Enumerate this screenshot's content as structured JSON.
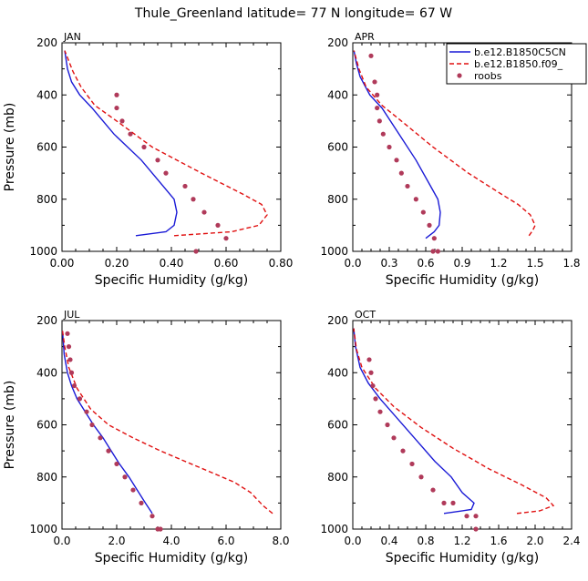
{
  "title": "Thule_Greenland  latitude= 77 N longitude= 67 W",
  "colors": {
    "model_a": "#1a1ad6",
    "model_b": "#e01010",
    "roobs": "#b03a5a"
  },
  "legend": {
    "entries": [
      "b.e12.B1850C5CN",
      "b.e12.B1850.f09_",
      "roobs"
    ],
    "placement": "top-right of APR panel"
  },
  "chart_data": [
    {
      "type": "line",
      "panel": "JAN",
      "xlabel": "Specific Humidity (g/kg)",
      "ylabel": "Pressure (mb)",
      "xlim": [
        0,
        0.8
      ],
      "ylim": [
        1000,
        200
      ],
      "xticks": [
        "0.00",
        "0.20",
        "0.40",
        "0.60",
        "0.80"
      ],
      "yticks": [
        "200",
        "400",
        "600",
        "800",
        "1000"
      ],
      "series": [
        {
          "name": "b.e12.B1850C5CN",
          "style": "solid",
          "x": [
            0.27,
            0.38,
            0.41,
            0.42,
            0.41,
            0.37,
            0.29,
            0.19,
            0.11,
            0.065,
            0.035,
            0.02,
            0.01
          ],
          "y": [
            940,
            925,
            900,
            850,
            800,
            750,
            650,
            550,
            450,
            400,
            350,
            300,
            230
          ]
        },
        {
          "name": "b.e12.B1850.f09_",
          "style": "dashed",
          "x": [
            0.41,
            0.62,
            0.72,
            0.75,
            0.73,
            0.66,
            0.51,
            0.33,
            0.2,
            0.12,
            0.07,
            0.04,
            0.01
          ],
          "y": [
            940,
            925,
            900,
            860,
            820,
            780,
            700,
            600,
            500,
            440,
            370,
            310,
            230
          ]
        }
      ],
      "points": {
        "name": "roobs",
        "x": [
          0.2,
          0.2,
          0.22,
          0.25,
          0.3,
          0.35,
          0.38,
          0.45,
          0.48,
          0.52,
          0.57,
          0.6,
          0.49
        ],
        "y": [
          400,
          450,
          500,
          550,
          600,
          650,
          700,
          750,
          800,
          850,
          900,
          950,
          1000
        ]
      }
    },
    {
      "type": "line",
      "panel": "APR",
      "xlabel": "Specific Humidity (g/kg)",
      "ylabel": "",
      "xlim": [
        0,
        1.8
      ],
      "ylim": [
        1000,
        200
      ],
      "xticks": [
        "0.0",
        "0.3",
        "0.6",
        "0.9",
        "1.2",
        "1.5",
        "1.8"
      ],
      "yticks": [
        "200",
        "400",
        "600",
        "800",
        "1000"
      ],
      "series": [
        {
          "name": "b.e12.B1850C5CN",
          "style": "solid",
          "x": [
            0.6,
            0.67,
            0.71,
            0.72,
            0.7,
            0.64,
            0.52,
            0.38,
            0.24,
            0.14,
            0.06,
            0.03,
            0.01
          ],
          "y": [
            950,
            925,
            900,
            850,
            800,
            750,
            650,
            550,
            450,
            400,
            330,
            280,
            230
          ]
        },
        {
          "name": "b.e12.B1850.f09_",
          "style": "dashed",
          "x": [
            1.45,
            1.48,
            1.5,
            1.46,
            1.36,
            1.22,
            0.95,
            0.66,
            0.4,
            0.24,
            0.11,
            0.05,
            0.01
          ],
          "y": [
            940,
            920,
            900,
            860,
            820,
            780,
            700,
            600,
            500,
            440,
            370,
            300,
            230
          ]
        }
      ],
      "points": {
        "name": "roobs",
        "x": [
          0.15,
          0.18,
          0.2,
          0.2,
          0.22,
          0.25,
          0.3,
          0.36,
          0.4,
          0.45,
          0.52,
          0.58,
          0.63,
          0.67,
          0.7,
          0.66
        ],
        "y": [
          250,
          350,
          400,
          450,
          500,
          550,
          600,
          650,
          700,
          750,
          800,
          850,
          900,
          950,
          1000,
          1000
        ]
      }
    },
    {
      "type": "line",
      "panel": "JUL",
      "xlabel": "Specific Humidity (g/kg)",
      "ylabel": "Pressure (mb)",
      "xlim": [
        0,
        8.0
      ],
      "ylim": [
        1000,
        200
      ],
      "xticks": [
        "0.0",
        "2.0",
        "4.0",
        "6.0",
        "8.0"
      ],
      "yticks": [
        "200",
        "400",
        "600",
        "800",
        "1000"
      ],
      "series": [
        {
          "name": "b.e12.B1850C5CN",
          "style": "solid",
          "x": [
            3.3,
            3.05,
            2.75,
            2.45,
            2.1,
            1.8,
            1.5,
            1.15,
            0.85,
            0.55,
            0.35,
            0.2,
            0.08,
            0.02
          ],
          "y": [
            940,
            900,
            850,
            800,
            750,
            700,
            650,
            600,
            550,
            500,
            450,
            400,
            330,
            240
          ]
        },
        {
          "name": "b.e12.B1850.f09_",
          "style": "dashed",
          "x": [
            7.7,
            7.35,
            6.9,
            6.3,
            5.4,
            4.5,
            3.6,
            2.6,
            1.7,
            1.05,
            0.55,
            0.25,
            0.1,
            0.02
          ],
          "y": [
            940,
            910,
            860,
            820,
            780,
            740,
            700,
            650,
            600,
            540,
            460,
            380,
            300,
            240
          ]
        }
      ],
      "points": {
        "name": "roobs",
        "x": [
          0.2,
          0.25,
          0.3,
          0.35,
          0.45,
          0.65,
          0.9,
          1.1,
          1.4,
          1.7,
          2.0,
          2.3,
          2.6,
          2.9,
          3.3,
          3.5,
          3.6
        ],
        "y": [
          250,
          300,
          350,
          400,
          450,
          500,
          550,
          600,
          650,
          700,
          750,
          800,
          850,
          900,
          950,
          1000,
          1000
        ]
      }
    },
    {
      "type": "line",
      "panel": "OCT",
      "xlabel": "Specific Humidity (g/kg)",
      "ylabel": "",
      "xlim": [
        0,
        2.4
      ],
      "ylim": [
        1000,
        200
      ],
      "xticks": [
        "0.0",
        "0.4",
        "0.8",
        "1.2",
        "1.6",
        "2.0",
        "2.4"
      ],
      "yticks": [
        "200",
        "400",
        "600",
        "800",
        "1000"
      ],
      "series": [
        {
          "name": "b.e12.B1850C5CN",
          "style": "solid",
          "x": [
            1.0,
            1.3,
            1.33,
            1.2,
            1.08,
            0.9,
            0.7,
            0.5,
            0.3,
            0.17,
            0.08,
            0.03,
            0.01
          ],
          "y": [
            940,
            925,
            900,
            860,
            800,
            740,
            660,
            580,
            500,
            440,
            380,
            300,
            230
          ]
        },
        {
          "name": "b.e12.B1850.f09_",
          "style": "dashed",
          "x": [
            1.8,
            2.05,
            2.2,
            2.12,
            1.85,
            1.5,
            1.1,
            0.75,
            0.45,
            0.25,
            0.1,
            0.04,
            0.01
          ],
          "y": [
            940,
            930,
            910,
            880,
            830,
            770,
            690,
            610,
            530,
            460,
            380,
            310,
            230
          ]
        }
      ],
      "points": {
        "name": "roobs",
        "x": [
          0.18,
          0.2,
          0.22,
          0.25,
          0.3,
          0.38,
          0.45,
          0.55,
          0.65,
          0.75,
          0.88,
          1.0,
          1.1,
          1.25,
          1.35,
          1.35
        ],
        "y": [
          350,
          400,
          450,
          500,
          550,
          600,
          650,
          700,
          750,
          800,
          850,
          900,
          900,
          950,
          950,
          1000
        ]
      }
    }
  ]
}
